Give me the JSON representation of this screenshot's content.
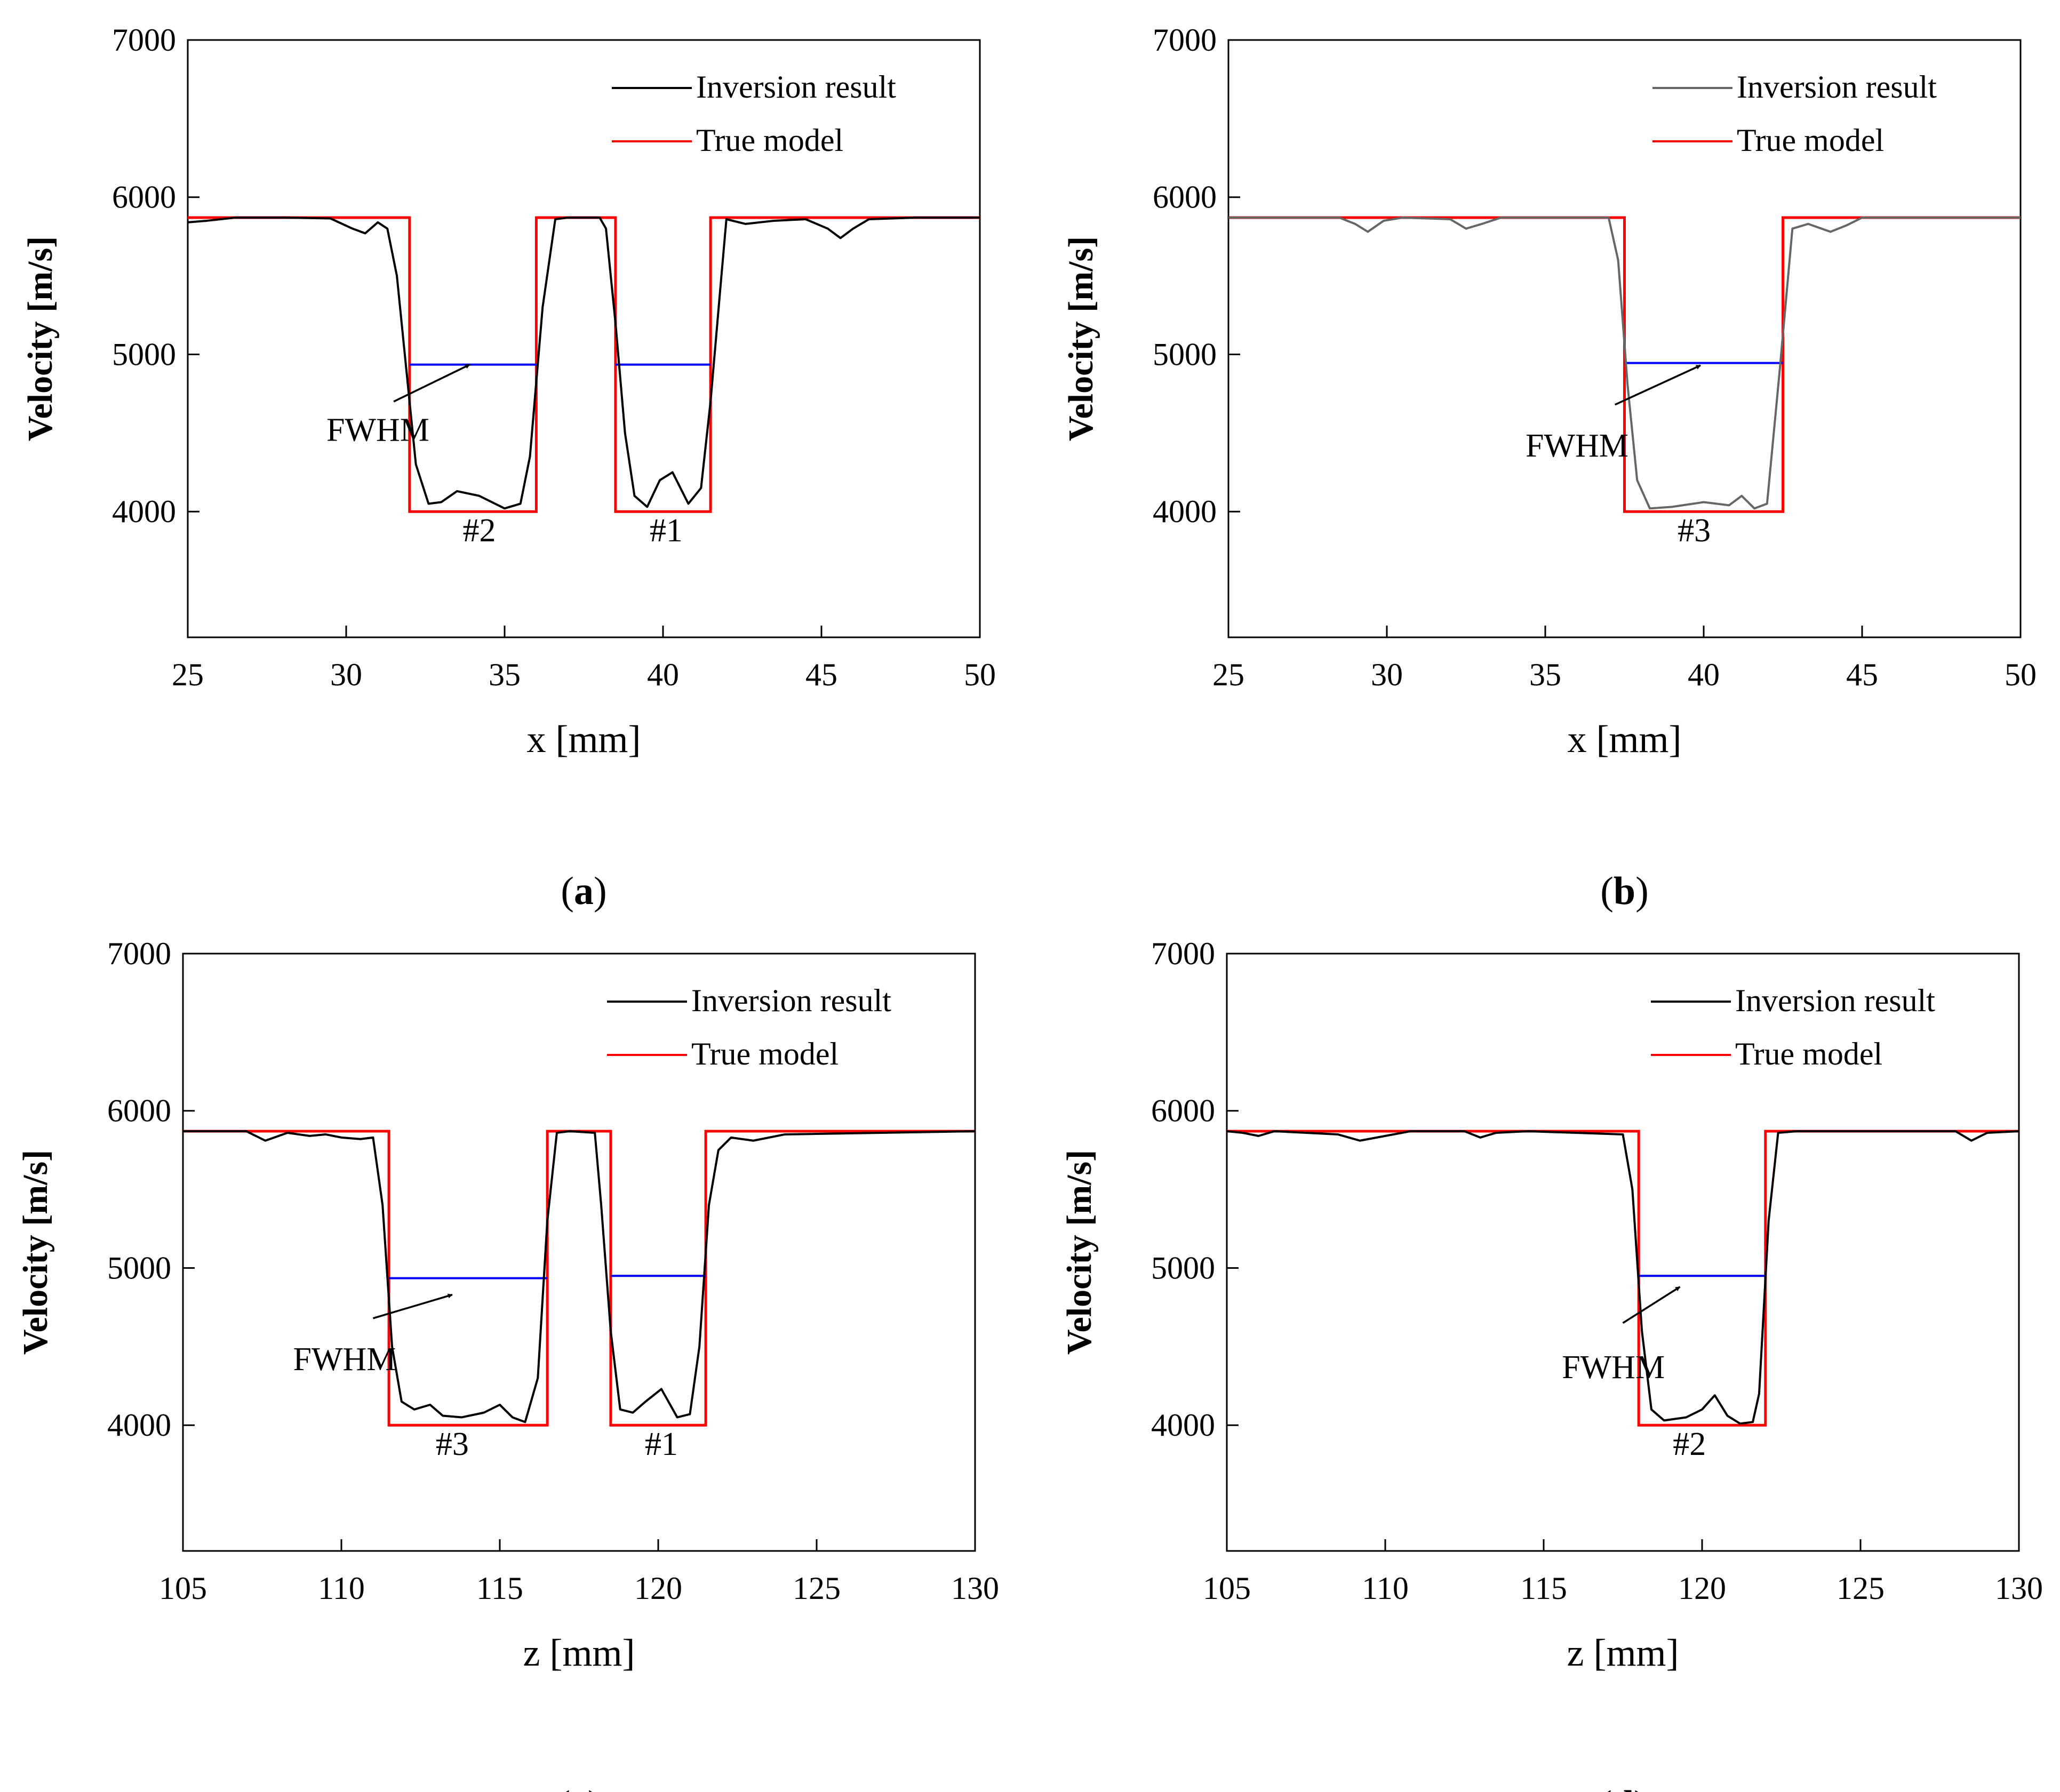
{
  "chart_data": [
    {
      "type": "line",
      "panel_label": "a",
      "xlabel": "x [mm]",
      "ylabel": "Velocity [m/s]",
      "xlim": [
        25,
        50
      ],
      "ylim": [
        3200,
        7000
      ],
      "xticks": [
        25,
        30,
        35,
        40,
        45,
        50
      ],
      "yticks": [
        4000,
        5000,
        6000,
        7000
      ],
      "legend": {
        "position": "top-right",
        "entries": [
          "Inversion result",
          "True model"
        ]
      },
      "colors": {
        "inversion": "#000000",
        "true_model": "#ff0000",
        "fwhm": "#0000ff"
      },
      "series": [
        {
          "name": "Inversion result",
          "x": [
            25,
            25.6,
            26.5,
            28,
            29.5,
            30.2,
            30.6,
            31,
            31.3,
            31.6,
            31.9,
            32.2,
            32.6,
            33,
            33.5,
            34.2,
            35,
            35.5,
            35.8,
            36.2,
            36.6,
            37,
            38,
            38.2,
            38.5,
            38.8,
            39.1,
            39.5,
            39.9,
            40.3,
            40.8,
            41.2,
            41.5,
            41.8,
            42,
            42.6,
            43.5,
            44.5,
            45.2,
            45.6,
            46,
            46.5,
            48,
            50
          ],
          "y": [
            5840,
            5850,
            5870,
            5870,
            5865,
            5800,
            5770,
            5840,
            5800,
            5500,
            4900,
            4300,
            4050,
            4060,
            4130,
            4100,
            4020,
            4050,
            4350,
            5300,
            5860,
            5870,
            5870,
            5800,
            5200,
            4500,
            4100,
            4030,
            4200,
            4250,
            4050,
            4150,
            4700,
            5400,
            5860,
            5830,
            5850,
            5860,
            5800,
            5740,
            5800,
            5860,
            5870,
            5870
          ]
        },
        {
          "name": "True model",
          "x": [
            25,
            32,
            32,
            36,
            36,
            38.5,
            38.5,
            41.5,
            41.5,
            50
          ],
          "y": [
            5870,
            5870,
            4000,
            4000,
            5870,
            5870,
            4000,
            4000,
            5870,
            5870
          ]
        }
      ],
      "fwhm": [
        {
          "x": [
            32,
            36
          ],
          "y": 4935
        },
        {
          "x": [
            38.5,
            41.5
          ],
          "y": 4935
        }
      ],
      "arrow": {
        "from": [
          31.5,
          4700
        ],
        "to": [
          33.9,
          4935
        ]
      },
      "annotations": [
        {
          "text": "FWHM",
          "x": 31,
          "y": 4450
        },
        {
          "text": "#2",
          "x": 34.2,
          "y": 3810
        },
        {
          "text": "#1",
          "x": 40.1,
          "y": 3810
        }
      ]
    },
    {
      "type": "line",
      "panel_label": "b",
      "xlabel": "x [mm]",
      "ylabel": "Velocity [m/s]",
      "xlim": [
        25,
        50
      ],
      "ylim": [
        3200,
        7000
      ],
      "xticks": [
        25,
        30,
        35,
        40,
        45,
        50
      ],
      "yticks": [
        4000,
        5000,
        6000,
        7000
      ],
      "legend": {
        "position": "top-right",
        "entries": [
          "Inversion result",
          "True model"
        ]
      },
      "colors": {
        "inversion": "#666666",
        "true_model": "#ff0000",
        "fwhm": "#0000ff"
      },
      "series": [
        {
          "name": "Inversion result",
          "x": [
            25,
            28.5,
            29,
            29.4,
            29.9,
            30.5,
            32,
            32.5,
            33,
            33.6,
            35,
            37,
            37.3,
            37.6,
            37.9,
            38.3,
            39,
            40,
            40.8,
            41.2,
            41.6,
            42,
            42.4,
            42.8,
            43.3,
            44,
            44.5,
            45,
            50
          ],
          "y": [
            5870,
            5870,
            5830,
            5780,
            5850,
            5870,
            5860,
            5800,
            5830,
            5870,
            5870,
            5870,
            5600,
            4800,
            4200,
            4020,
            4030,
            4060,
            4040,
            4100,
            4020,
            4050,
            4900,
            5800,
            5830,
            5780,
            5820,
            5870,
            5870
          ]
        },
        {
          "name": "True model",
          "x": [
            25,
            37.5,
            37.5,
            42.5,
            42.5,
            50
          ],
          "y": [
            5870,
            5870,
            4000,
            4000,
            5870,
            5870
          ]
        }
      ],
      "fwhm": [
        {
          "x": [
            37.5,
            42.5
          ],
          "y": 4945
        }
      ],
      "arrow": {
        "from": [
          37.2,
          4680
        ],
        "to": [
          39.9,
          4930
        ]
      },
      "annotations": [
        {
          "text": "FWHM",
          "x": 36,
          "y": 4350
        },
        {
          "text": "#3",
          "x": 39.7,
          "y": 3810
        }
      ]
    },
    {
      "type": "line",
      "panel_label": "c",
      "xlabel": "z [mm]",
      "ylabel": "Velocity [m/s]",
      "xlim": [
        105,
        130
      ],
      "ylim": [
        3200,
        7000
      ],
      "xticks": [
        105,
        110,
        115,
        120,
        125,
        130
      ],
      "yticks": [
        4000,
        5000,
        6000,
        7000
      ],
      "legend": {
        "position": "top-right",
        "entries": [
          "Inversion result",
          "True model"
        ]
      },
      "colors": {
        "inversion": "#000000",
        "true_model": "#ff0000",
        "fwhm": "#0000ff"
      },
      "series": [
        {
          "name": "Inversion result",
          "x": [
            105,
            107,
            107.6,
            108.3,
            109,
            109.5,
            110,
            110.6,
            111,
            111.3,
            111.6,
            111.9,
            112.3,
            112.8,
            113.2,
            113.8,
            114.5,
            115,
            115.4,
            115.8,
            116.2,
            116.5,
            116.8,
            117.2,
            118,
            118.2,
            118.5,
            118.8,
            119.2,
            119.6,
            120.1,
            120.6,
            121,
            121.3,
            121.6,
            121.9,
            122.3,
            123,
            124,
            130
          ],
          "y": [
            5870,
            5870,
            5810,
            5860,
            5840,
            5850,
            5830,
            5820,
            5830,
            5400,
            4500,
            4150,
            4100,
            4130,
            4060,
            4050,
            4080,
            4130,
            4050,
            4020,
            4300,
            5300,
            5860,
            5870,
            5860,
            5400,
            4600,
            4100,
            4080,
            4150,
            4230,
            4050,
            4070,
            4500,
            5400,
            5750,
            5830,
            5810,
            5850,
            5870
          ]
        },
        {
          "name": "True model",
          "x": [
            105,
            111.5,
            111.5,
            116.5,
            116.5,
            118.5,
            118.5,
            121.5,
            121.5,
            130
          ],
          "y": [
            5870,
            5870,
            4000,
            4000,
            5870,
            5870,
            4000,
            4000,
            5870,
            5870
          ]
        }
      ],
      "fwhm": [
        {
          "x": [
            111.5,
            116.5
          ],
          "y": 4935
        },
        {
          "x": [
            118.5,
            121.5
          ],
          "y": 4950
        }
      ],
      "arrow": {
        "from": [
          111,
          4680
        ],
        "to": [
          113.5,
          4830
        ]
      },
      "annotations": [
        {
          "text": "FWHM",
          "x": 110.1,
          "y": 4350
        },
        {
          "text": "#3",
          "x": 113.5,
          "y": 3810
        },
        {
          "text": "#1",
          "x": 120.1,
          "y": 3810
        }
      ]
    },
    {
      "type": "line",
      "panel_label": "d",
      "xlabel": "z [mm]",
      "ylabel": "Velocity [m/s]",
      "xlim": [
        105,
        130
      ],
      "ylim": [
        3200,
        7000
      ],
      "xticks": [
        105,
        110,
        115,
        120,
        125,
        130
      ],
      "yticks": [
        4000,
        5000,
        6000,
        7000
      ],
      "legend": {
        "position": "top-right",
        "entries": [
          "Inversion result",
          "True model"
        ]
      },
      "colors": {
        "inversion": "#000000",
        "true_model": "#ff0000",
        "fwhm": "#0000ff"
      },
      "series": [
        {
          "name": "Inversion result",
          "x": [
            105,
            105.5,
            106,
            106.5,
            107.5,
            108.5,
            109.2,
            110,
            110.8,
            112.5,
            113,
            113.5,
            114.5,
            117.5,
            117.8,
            118.1,
            118.4,
            118.8,
            119.5,
            120,
            120.4,
            120.8,
            121.2,
            121.6,
            121.8,
            122.1,
            122.4,
            123,
            128,
            128.5,
            129,
            130
          ],
          "y": [
            5870,
            5860,
            5840,
            5870,
            5860,
            5850,
            5810,
            5840,
            5870,
            5870,
            5830,
            5860,
            5870,
            5850,
            5500,
            4600,
            4100,
            4030,
            4050,
            4100,
            4190,
            4060,
            4010,
            4020,
            4200,
            5300,
            5860,
            5870,
            5870,
            5810,
            5860,
            5870
          ]
        },
        {
          "name": "True model",
          "x": [
            105,
            118,
            118,
            122,
            122,
            130
          ],
          "y": [
            5870,
            5870,
            4000,
            4000,
            5870,
            5870
          ]
        }
      ],
      "fwhm": [
        {
          "x": [
            118,
            122
          ],
          "y": 4950
        }
      ],
      "arrow": {
        "from": [
          117.5,
          4650
        ],
        "to": [
          119.3,
          4880
        ]
      },
      "annotations": [
        {
          "text": "FWHM",
          "x": 117.2,
          "y": 4300
        },
        {
          "text": "#2",
          "x": 119.6,
          "y": 3810
        }
      ]
    }
  ]
}
